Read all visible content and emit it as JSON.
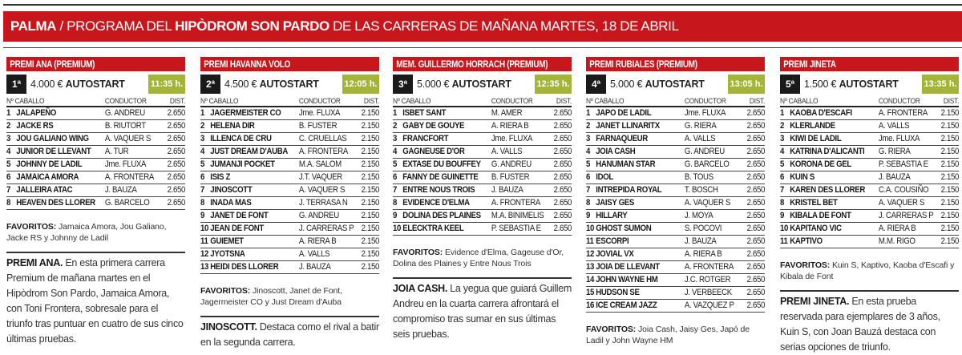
{
  "banner": {
    "city": "PALMA",
    "slash": " / ",
    "pre": "PROGRAMA DEL ",
    "venue": "HIPÒDROM SON PARDO",
    "post": " DE LAS CARRERAS DE MAÑANA MARTES, 18 DE ABRIL"
  },
  "colors": {
    "red": "#c8161d",
    "green": "#a3b437",
    "dark": "#1a1a1a"
  },
  "table_headers": {
    "num_caballo": "Nº CABALLO",
    "conductor": "CONDUCTOR",
    "dist": "DIST."
  },
  "favoritos_label": "FAVORITOS:",
  "races": [
    {
      "title": "PREMI ANA (PREMIUM)",
      "number": "1ª",
      "prize": "4.000 €",
      "type": "AUTOSTART",
      "time": "11:35 h.",
      "horses": [
        [
          "1",
          "JALAPEÑO",
          "G. ANDREU",
          "2.650"
        ],
        [
          "2",
          "JACKE RS",
          "B. RIUTORT",
          "2.650"
        ],
        [
          "3",
          "JOU GALIANO WING",
          "A. VAQUER S",
          "2.650"
        ],
        [
          "4",
          "JUNIOR DE LLEVANT",
          "A. TUR",
          "2.650"
        ],
        [
          "5",
          "JOHNNY DE LADIL",
          "Jme. FLUXA",
          "2.650"
        ],
        [
          "6",
          "JAMAICA AMORA",
          "A. FRONTERA",
          "2.650"
        ],
        [
          "7",
          "JALLEIRA ATAC",
          "J. BAUZA",
          "2.650"
        ],
        [
          "8",
          "HEAVEN DES LLORER",
          "G. BARCELO",
          "2.650"
        ]
      ],
      "favoritos": "Jamaica Amora, Jou Galiano, Jacke RS y Johnny de Ladil",
      "comment_lead": "PREMI ANA.",
      "comment": "En esta primera carrera Premium de mañana martes en el Hipòdrom Son Pardo, Jamaica Amora, con Toni Frontera, sobresale para el triunfo tras puntuar en cuatro de sus cinco últimas pruebas."
    },
    {
      "title": "PREMI HAVANNA VOLO",
      "number": "2ª",
      "prize": "4.500 €",
      "type": "AUTOSTART",
      "time": "12:05 h.",
      "horses": [
        [
          "1",
          "JAGERMEISTER CO",
          "Jme. FLUXA",
          "2.150"
        ],
        [
          "2",
          "HELENA DIR",
          "B. FUSTER",
          "2.150"
        ],
        [
          "3",
          "ILLENCA DE CRU",
          "C. CRUELLAS",
          "2.150"
        ],
        [
          "4",
          "JUST DREAM D'AUBA",
          "A. FRONTERA",
          "2.150"
        ],
        [
          "5",
          "JUMANJI POCKET",
          "M.A. SALOM",
          "2.150"
        ],
        [
          "6",
          "ISIS Z",
          "J.T. VAQUER",
          "2.150"
        ],
        [
          "7",
          "JINOSCOTT",
          "A. VAQUER S",
          "2.150"
        ],
        [
          "8",
          "INADA MAS",
          "J. TERRASA N",
          "2.150"
        ],
        [
          "9",
          "JANET DE FONT",
          "G. ANDREU",
          "2.150"
        ],
        [
          "10",
          "JEAN DE FONT",
          "J. CARRERAS P",
          "2.150"
        ],
        [
          "11",
          "GUIEMET",
          "A. RIERA B",
          "2.150"
        ],
        [
          "12",
          "JYOTSNA",
          "A. VALLS",
          "2.150"
        ],
        [
          "13",
          "HEIDI DES LLORER",
          "J. BAUZA",
          "2.150"
        ]
      ],
      "favoritos": "Jinoscott, Janet de Font, Jagermeister CO y Just Dream d'Auba",
      "comment_lead": "JINOSCOTT.",
      "comment": "Destaca como el rival a batir en la segunda carrera."
    },
    {
      "title": "MEM. GUILLERMO HORRACH (PREMIUM)",
      "number": "3ª",
      "prize": "5.000 €",
      "type": "AUTOSTART",
      "time": "12:35 h.",
      "horses": [
        [
          "1",
          "ISBET SANT",
          "M. AMER",
          "2.650"
        ],
        [
          "2",
          "GABY DE GOUYE",
          "A. RIERA B",
          "2.650"
        ],
        [
          "3",
          "FRANCFORT",
          "Jme. FLUXA",
          "2.650"
        ],
        [
          "4",
          "GAGNEUSE D'OR",
          "A. VALLS",
          "2.650"
        ],
        [
          "5",
          "EXTASE DU BOUFFEY",
          "G. ANDREU",
          "2.650"
        ],
        [
          "6",
          "FANNY DE GUINETTE",
          "B. FUSTER",
          "2.650"
        ],
        [
          "7",
          "ENTRE NOUS TROIS",
          "J. BAUZA",
          "2.650"
        ],
        [
          "8",
          "EVIDENCE D'ELMA",
          "A. FRONTERA",
          "2.650"
        ],
        [
          "9",
          "DOLINA DES PLAINES",
          "M.A. BINIMELIS",
          "2.650"
        ],
        [
          "10",
          "ELECKTRA KEEL",
          "P. SEBASTIA E",
          "2.650"
        ]
      ],
      "favoritos": "Evidence d'Elma, Gageuse d'Or, Dolina des Plaines y Entre Nous Trois",
      "comment_lead": "JOIA CASH.",
      "comment": "La yegua que guiará Guillem Andreu en la cuarta carrera afrontará el compromiso tras sumar en sus últimas seis pruebas."
    },
    {
      "title": "PREMI RUBIALES (PREMIUM)",
      "number": "4ª",
      "prize": "5.000 €",
      "type": "AUTOSTART",
      "time": "13:05 h.",
      "horses": [
        [
          "1",
          "JAPO DE LADIL",
          "Jme. FLUXA",
          "2.650"
        ],
        [
          "2",
          "JANET LLINARITX",
          "G. RIERA",
          "2.650"
        ],
        [
          "3",
          "FARNAQUEUR",
          "A. VALLS",
          "2.650"
        ],
        [
          "4",
          "JOIA CASH",
          "G. ANDREU",
          "2.650"
        ],
        [
          "5",
          "HANUMAN STAR",
          "G. BARCELO",
          "2.650"
        ],
        [
          "6",
          "IDOL",
          "B. TOUS",
          "2.650"
        ],
        [
          "7",
          "INTREPIDA ROYAL",
          "T. BOSCH",
          "2.650"
        ],
        [
          "8",
          "JAISY GES",
          "A. VAQUER S",
          "2.650"
        ],
        [
          "9",
          "HILLARY",
          "J. MOYA",
          "2.650"
        ],
        [
          "10",
          "GHOST SUMON",
          "S. POCOVI",
          "2.650"
        ],
        [
          "11",
          "ESCORPI",
          "J. BAUZA",
          "2.650"
        ],
        [
          "12",
          "JOVIAL VX",
          "A. RIERA B",
          "2.650"
        ],
        [
          "13",
          "JOIA DE LLEVANT",
          "A. FRONTERA",
          "2.650"
        ],
        [
          "14",
          "JOHN WAYNE HM",
          "J.C. ROTGER",
          "2.650"
        ],
        [
          "15",
          "HUDSON SE",
          "J. VERBEECK",
          "2.650"
        ],
        [
          "16",
          "ICE CREAM JAZZ",
          "A. VAZQUEZ P",
          "2.650"
        ]
      ],
      "favoritos": "Joia Cash, Jaisy Ges, Japó de Ladil y John Wayne HM",
      "comment_lead": "",
      "comment": ""
    },
    {
      "title": "PREMI JINETA",
      "number": "5ª",
      "prize": "1.500 €",
      "type": "AUTOSTART",
      "time": "13:35 h.",
      "horses": [
        [
          "1",
          "KAOBA D'ESCAFI",
          "A. FRONTERA",
          "2.150"
        ],
        [
          "2",
          "KLERLANDE",
          "A. VALLS",
          "2.150"
        ],
        [
          "3",
          "KIWI DE LADIL",
          "Jme. FLUXA",
          "2.150"
        ],
        [
          "4",
          "KATRINA D'ALICANTI",
          "G. RIERA",
          "2.150"
        ],
        [
          "5",
          "KORONA DE GEL",
          "P. SEBASTIA E",
          "2.150"
        ],
        [
          "6",
          "KUIN S",
          "J. BAUZA",
          "2.150"
        ],
        [
          "7",
          "KAREN DES LLORER",
          "C.A. COUSIÑO",
          "2.150"
        ],
        [
          "8",
          "KRISTEL BET",
          "A. VAQUER S",
          "2.150"
        ],
        [
          "9",
          "KIBALA DE FONT",
          "J. CARRERAS P",
          "2.150"
        ],
        [
          "10",
          "KAPITANO VIC",
          "A. RIERA B",
          "2.150"
        ],
        [
          "11",
          "KAPTIVO",
          "M.M. RIGO",
          "2.150"
        ]
      ],
      "favoritos": "Kuin S, Kaptivo, Kaoba d'Escafi y Kibala de Font",
      "comment_lead": "PREMI JINETA.",
      "comment": "En esta prueba reservada para ejemplares de 3 años, Kuin S, con Joan Bauzá destaca con serias opciones de triunfo."
    }
  ]
}
